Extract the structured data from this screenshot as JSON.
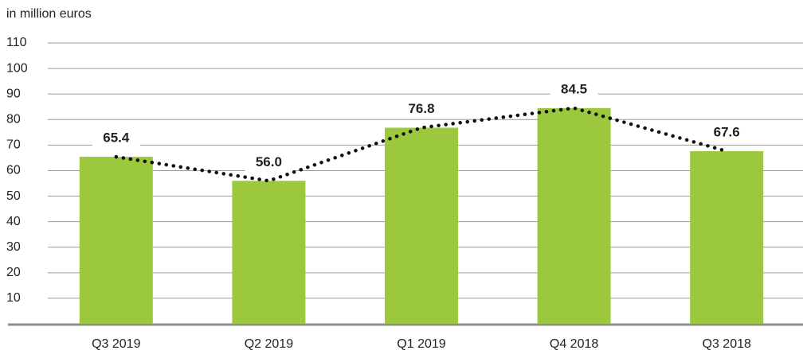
{
  "chart_data": {
    "type": "bar",
    "y_axis_label": "in million euros",
    "categories": [
      "Q3 2019",
      "Q2 2019",
      "Q1 2019",
      "Q4 2018",
      "Q3 2018"
    ],
    "values": [
      65.4,
      56,
      76.8,
      84.5,
      67.6
    ],
    "value_labels": [
      "65.4",
      "56.0",
      "76.8",
      "84.5",
      "67.6"
    ],
    "color": "#9bc83c",
    "line_color": "#111111",
    "ylim": [
      0,
      110
    ],
    "yticks": [
      10,
      20,
      30,
      40,
      50,
      60,
      70,
      80,
      90,
      100,
      110
    ],
    "grid": true
  }
}
